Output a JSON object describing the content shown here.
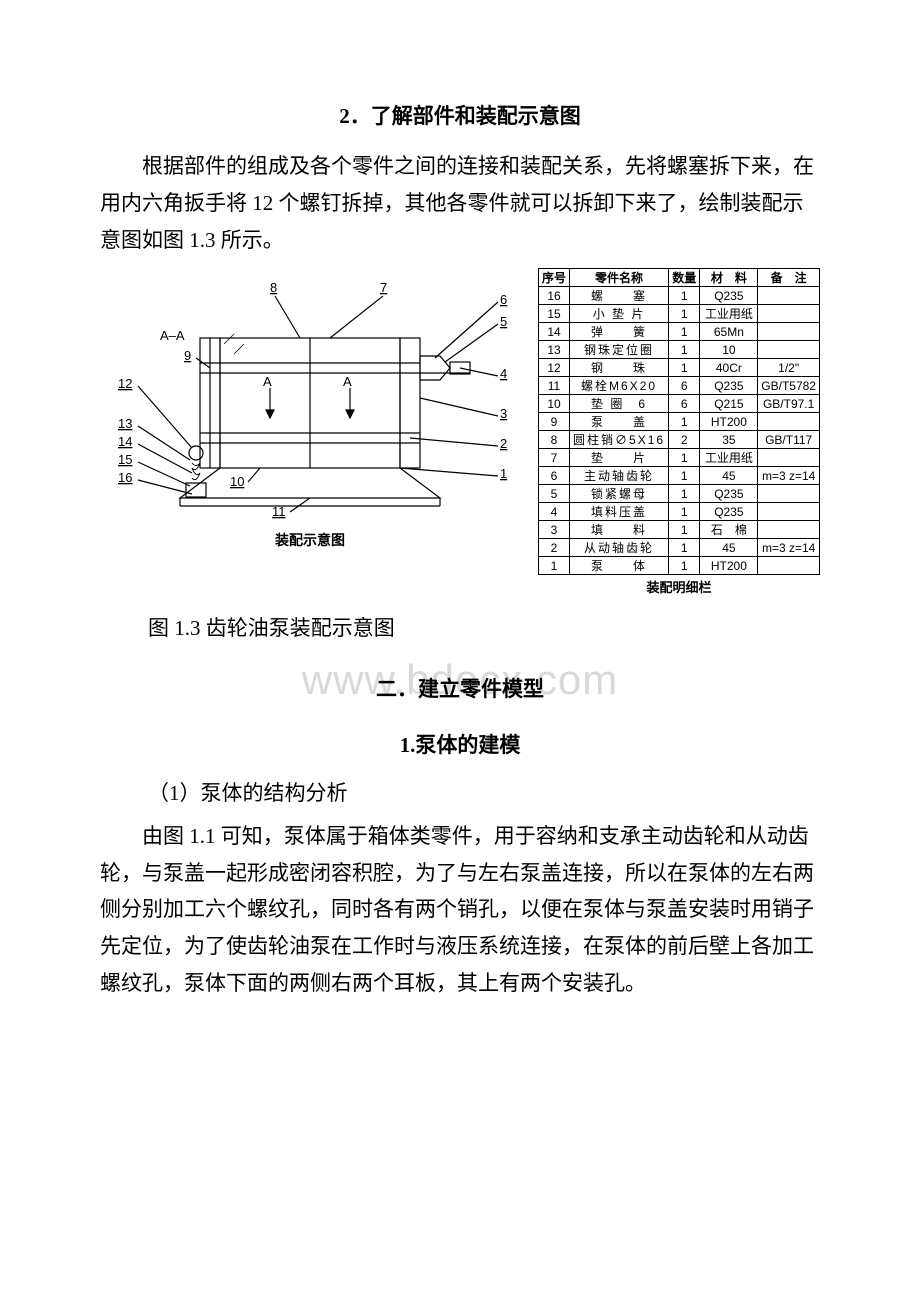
{
  "watermark": "www.bdocx.com",
  "section2": {
    "title": "2．了解部件和装配示意图",
    "para": "根据部件的组成及各个零件之间的连接和装配关系，先将螺塞拆下来，在用内六角扳手将 12 个螺钉拆掉，其他各零件就可以拆卸下来了，绘制装配示意图如图 1.3 所示。"
  },
  "figure": {
    "diagram_caption": "装配示意图",
    "bom_caption": "装配明细栏",
    "fig_label": "图 1.3 齿轮油泵装配示意图",
    "section_label": "A–A",
    "section_marks": [
      "A",
      "A"
    ],
    "callouts_left": [
      "12",
      "13",
      "14",
      "15",
      "16"
    ],
    "callouts_left2": [
      "9",
      "10",
      "11"
    ],
    "callouts_top": [
      "8",
      "7"
    ],
    "callouts_right": [
      "6",
      "5",
      "4",
      "3",
      "2",
      "1"
    ],
    "line_color": "#000000",
    "stroke_width": 1.2
  },
  "bom": {
    "header": {
      "no": "序号",
      "name": "零件名称",
      "qty": "数量",
      "mat": "材　料",
      "note": "备　注"
    },
    "rows": [
      {
        "no": "16",
        "name": "螺　　塞",
        "qty": "1",
        "mat": "Q235",
        "note": ""
      },
      {
        "no": "15",
        "name": "小 垫 片",
        "qty": "1",
        "mat": "工业用纸",
        "note": ""
      },
      {
        "no": "14",
        "name": "弹　　簧",
        "qty": "1",
        "mat": "65Mn",
        "note": ""
      },
      {
        "no": "13",
        "name": "钢珠定位圈",
        "qty": "1",
        "mat": "10",
        "note": ""
      },
      {
        "no": "12",
        "name": "钢　　珠",
        "qty": "1",
        "mat": "40Cr",
        "note": "1/2\""
      },
      {
        "no": "11",
        "name": "螺栓M6X20",
        "qty": "6",
        "mat": "Q235",
        "note": "GB/T5782"
      },
      {
        "no": "10",
        "name": "垫 圈　6",
        "qty": "6",
        "mat": "Q215",
        "note": "GB/T97.1"
      },
      {
        "no": "9",
        "name": "泵　　盖",
        "qty": "1",
        "mat": "HT200",
        "note": ""
      },
      {
        "no": "8",
        "name": "圆柱销∅5X16",
        "qty": "2",
        "mat": "35",
        "note": "GB/T117"
      },
      {
        "no": "7",
        "name": "垫　　片",
        "qty": "1",
        "mat": "工业用纸",
        "note": ""
      },
      {
        "no": "6",
        "name": "主动轴齿轮",
        "qty": "1",
        "mat": "45",
        "note": "m=3 z=14"
      },
      {
        "no": "5",
        "name": "锁紧螺母",
        "qty": "1",
        "mat": "Q235",
        "note": ""
      },
      {
        "no": "4",
        "name": "填料压盖",
        "qty": "1",
        "mat": "Q235",
        "note": ""
      },
      {
        "no": "3",
        "name": "填　　料",
        "qty": "1",
        "mat": "石　棉",
        "note": ""
      },
      {
        "no": "2",
        "name": "从动轴齿轮",
        "qty": "1",
        "mat": "45",
        "note": "m=3 z=14"
      },
      {
        "no": "1",
        "name": "泵　　体",
        "qty": "1",
        "mat": "HT200",
        "note": ""
      }
    ],
    "col_widths": [
      "10%",
      "30%",
      "12%",
      "26%",
      "22%"
    ]
  },
  "section_model": {
    "title": "二．建立零件模型",
    "sub_title": "1.泵体的建模",
    "item1_label": "（1）泵体的结构分析",
    "para": "由图 1.1 可知，泵体属于箱体类零件，用于容纳和支承主动齿轮和从动齿轮，与泵盖一起形成密闭容积腔，为了与左右泵盖连接，所以在泵体的左右两侧分别加工六个螺纹孔，同时各有两个销孔，以便在泵体与泵盖安装时用销子先定位，为了使齿轮油泵在工作时与液压系统连接，在泵体的前后壁上各加工螺纹孔，泵体下面的两侧右两个耳板，其上有两个安装孔。"
  }
}
